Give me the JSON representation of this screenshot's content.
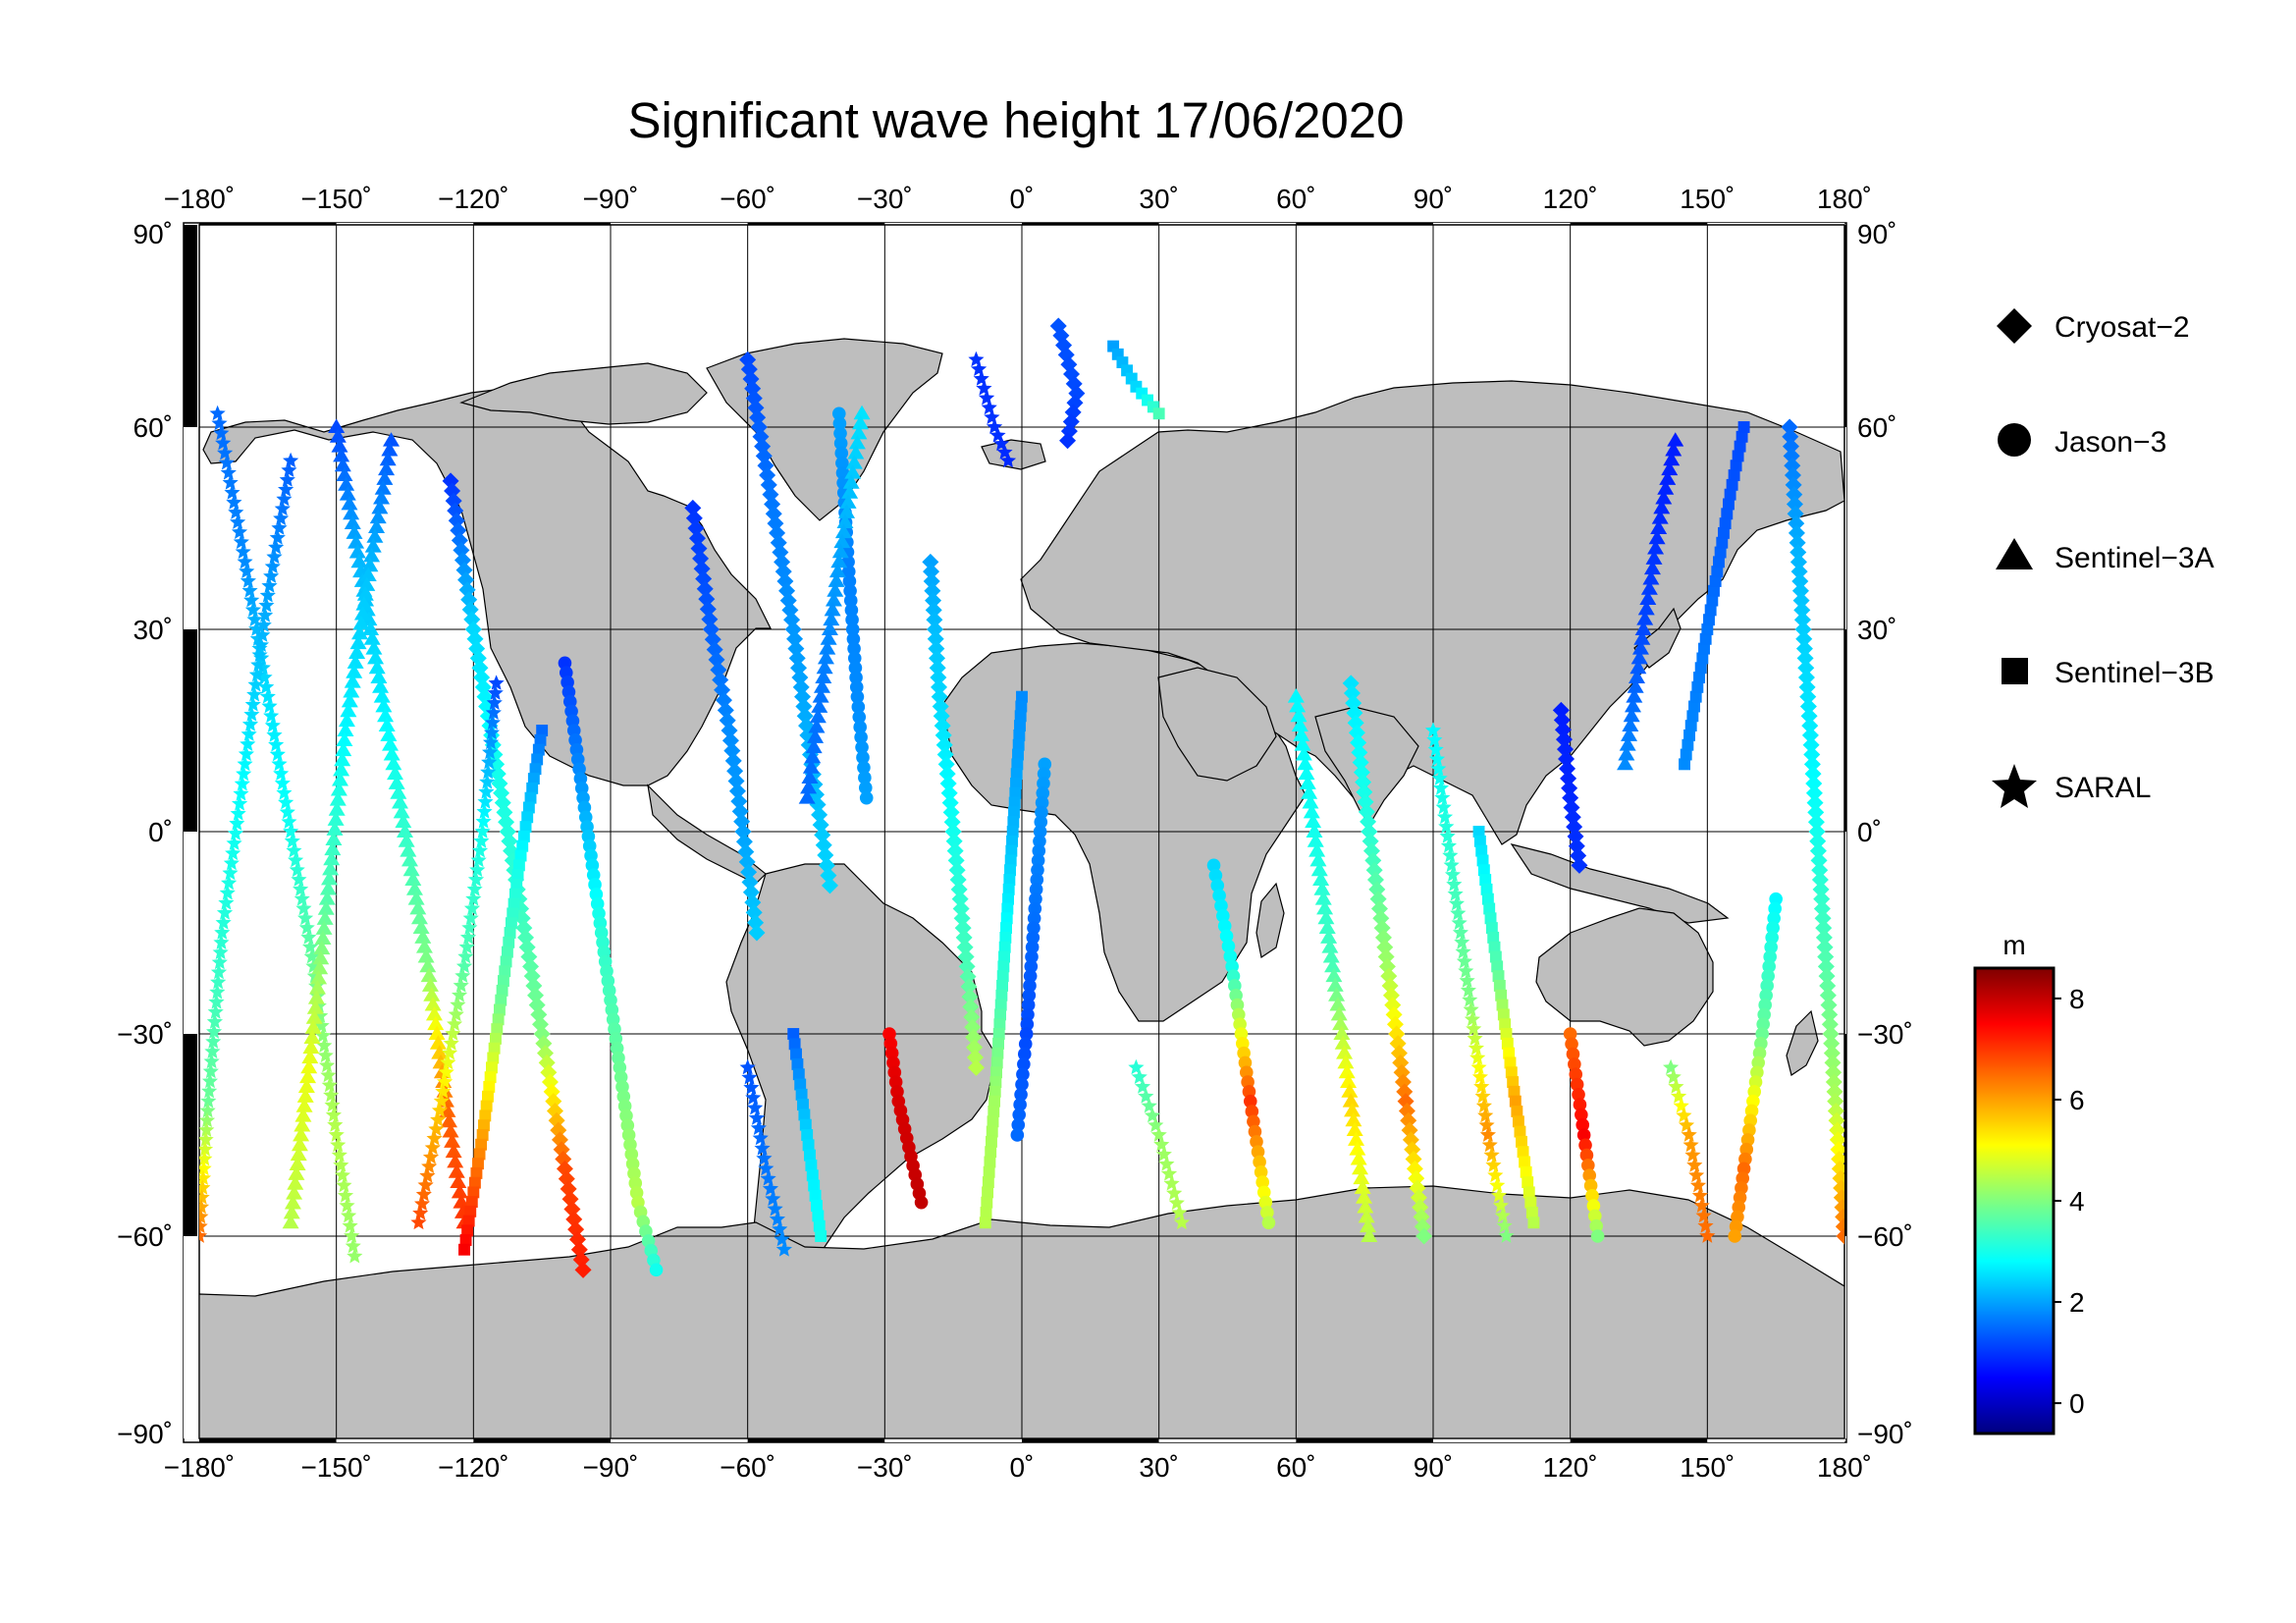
{
  "title": "Significant wave height 17/06/2020",
  "axes": {
    "lon_ticks": [
      {
        "value": -180,
        "label": "−180˚"
      },
      {
        "value": -150,
        "label": "−150˚"
      },
      {
        "value": -120,
        "label": "−120˚"
      },
      {
        "value": -90,
        "label": "−90˚"
      },
      {
        "value": -60,
        "label": "−60˚"
      },
      {
        "value": -30,
        "label": "−30˚"
      },
      {
        "value": 0,
        "label": "0˚"
      },
      {
        "value": 30,
        "label": "30˚"
      },
      {
        "value": 60,
        "label": "60˚"
      },
      {
        "value": 90,
        "label": "90˚"
      },
      {
        "value": 120,
        "label": "120˚"
      },
      {
        "value": 150,
        "label": "150˚"
      },
      {
        "value": 180,
        "label": "180˚"
      }
    ],
    "lat_ticks": [
      {
        "value": 90,
        "label": "90˚"
      },
      {
        "value": 60,
        "label": "60˚"
      },
      {
        "value": 30,
        "label": "30˚"
      },
      {
        "value": 0,
        "label": "0˚"
      },
      {
        "value": -30,
        "label": "−30˚"
      },
      {
        "value": -60,
        "label": "−60˚"
      },
      {
        "value": -90,
        "label": "−90˚"
      }
    ],
    "lon_range": [
      -180,
      180
    ],
    "lat_range": [
      -90,
      90
    ],
    "grid": true
  },
  "legend": {
    "placement": "right",
    "items": [
      {
        "label": "Cryosat−2",
        "marker": "diamond"
      },
      {
        "label": "Jason−3",
        "marker": "circle"
      },
      {
        "label": "Sentinel−3A",
        "marker": "triangle"
      },
      {
        "label": "Sentinel−3B",
        "marker": "square"
      },
      {
        "label": "SARAL",
        "marker": "star"
      }
    ]
  },
  "colorbar": {
    "unit": "m",
    "range": [
      -0.6,
      8.6
    ],
    "ticks": [
      {
        "value": 8,
        "label": "8"
      },
      {
        "value": 6,
        "label": "6"
      },
      {
        "value": 4,
        "label": "4"
      },
      {
        "value": 2,
        "label": "2"
      },
      {
        "value": 0,
        "label": "0"
      }
    ],
    "colormap": [
      "#00007f",
      "#0000ff",
      "#0080ff",
      "#00ffff",
      "#80ff80",
      "#ffff00",
      "#ff8000",
      "#ff0000",
      "#7f0000"
    ]
  },
  "colors": {
    "land": "#bebebe",
    "coast": "#000000",
    "ocean": "#ffffff"
  },
  "chart_data": {
    "type": "scatter",
    "tracks": [
      {
        "satellite": "SARAL",
        "pts": [
          [
            -176,
            62,
            1.5
          ],
          [
            -170,
            40,
            1.8
          ],
          [
            -165,
            20,
            2.6
          ],
          [
            -160,
            0,
            3.0
          ],
          [
            -155,
            -20,
            3.8
          ],
          [
            -150,
            -45,
            4.5
          ],
          [
            -146,
            -63,
            4.2
          ]
        ]
      },
      {
        "satellite": "SARAL",
        "pts": [
          [
            -160,
            55,
            1.4
          ],
          [
            -165,
            35,
            2.0
          ],
          [
            -170,
            10,
            2.8
          ],
          [
            -175,
            -15,
            3.2
          ],
          [
            -178,
            -40,
            3.8
          ],
          [
            -180,
            -60,
            6.5
          ]
        ]
      },
      {
        "satellite": "Sentinel-3A",
        "pts": [
          [
            -150,
            60,
            1.2
          ],
          [
            -145,
            40,
            2.2
          ],
          [
            -140,
            20,
            2.7
          ],
          [
            -135,
            0,
            3.3
          ],
          [
            -130,
            -20,
            4.0
          ],
          [
            -126,
            -40,
            6.5
          ],
          [
            -122,
            -58,
            7.0
          ]
        ]
      },
      {
        "satellite": "Sentinel-3A",
        "pts": [
          [
            -138,
            58,
            1.3
          ],
          [
            -143,
            38,
            2.3
          ],
          [
            -148,
            15,
            2.8
          ],
          [
            -152,
            -10,
            3.6
          ],
          [
            -156,
            -35,
            5.0
          ],
          [
            -160,
            -58,
            4.5
          ]
        ]
      },
      {
        "satellite": "Cryosat-2",
        "pts": [
          [
            -125,
            52,
            1.0
          ],
          [
            -120,
            30,
            2.5
          ],
          [
            -115,
            10,
            3.0
          ],
          [
            -110,
            -10,
            3.3
          ],
          [
            -105,
            -30,
            4.0
          ],
          [
            -100,
            -50,
            6.8
          ],
          [
            -96,
            -65,
            7.2
          ]
        ]
      },
      {
        "satellite": "SARAL",
        "pts": [
          [
            -115,
            22,
            1.2
          ],
          [
            -118,
            0,
            3.0
          ],
          [
            -122,
            -20,
            3.6
          ],
          [
            -127,
            -40,
            5.5
          ],
          [
            -132,
            -58,
            6.8
          ]
        ]
      },
      {
        "satellite": "Jason-3",
        "pts": [
          [
            -100,
            25,
            1.0
          ],
          [
            -96,
            5,
            2.0
          ],
          [
            -92,
            -15,
            3.2
          ],
          [
            -88,
            -35,
            3.8
          ],
          [
            -84,
            -55,
            4.5
          ],
          [
            -80,
            -65,
            3.0
          ]
        ]
      },
      {
        "satellite": "Sentinel-3B",
        "pts": [
          [
            -105,
            15,
            1.5
          ],
          [
            -110,
            -5,
            3.0
          ],
          [
            -114,
            -25,
            3.8
          ],
          [
            -118,
            -45,
            6.0
          ],
          [
            -122,
            -62,
            7.5
          ]
        ]
      },
      {
        "satellite": "Cryosat-2",
        "pts": [
          [
            -72,
            48,
            1.0
          ],
          [
            -68,
            30,
            1.4
          ],
          [
            -64,
            15,
            1.8
          ],
          [
            -61,
            0,
            2.0
          ],
          [
            -58,
            -15,
            2.4
          ]
        ]
      },
      {
        "satellite": "Cryosat-2",
        "pts": [
          [
            -60,
            70,
            1.2
          ],
          [
            -55,
            50,
            1.6
          ],
          [
            -50,
            30,
            1.9
          ],
          [
            -46,
            10,
            2.2
          ],
          [
            -42,
            -8,
            2.5
          ]
        ]
      },
      {
        "satellite": "Jason-3",
        "pts": [
          [
            -40,
            62,
            2.0
          ],
          [
            -38,
            40,
            1.7
          ],
          [
            -36,
            20,
            1.8
          ],
          [
            -34,
            5,
            2.0
          ]
        ]
      },
      {
        "satellite": "Sentinel-3A",
        "pts": [
          [
            -35,
            62,
            2.6
          ],
          [
            -40,
            40,
            2.0
          ],
          [
            -44,
            20,
            1.6
          ],
          [
            -47,
            5,
            1.5
          ]
        ]
      },
      {
        "satellite": "Sentinel-3B",
        "pts": [
          [
            -50,
            -30,
            1.4
          ],
          [
            -47,
            -45,
            2.5
          ],
          [
            -44,
            -60,
            3.0
          ]
        ]
      },
      {
        "satellite": "SARAL",
        "pts": [
          [
            -60,
            -35,
            1.3
          ],
          [
            -56,
            -50,
            1.6
          ],
          [
            -52,
            -62,
            1.8
          ]
        ]
      },
      {
        "satellite": "Jason-3",
        "pts": [
          [
            -29,
            -30,
            7.5
          ],
          [
            -27,
            -40,
            7.8
          ],
          [
            -22,
            -55,
            8.0
          ]
        ]
      },
      {
        "satellite": "Cryosat-2",
        "pts": [
          [
            -20,
            40,
            2.0
          ],
          [
            -18,
            20,
            2.5
          ],
          [
            -15,
            0,
            3.0
          ],
          [
            -12,
            -20,
            3.5
          ],
          [
            -10,
            -35,
            4.5
          ]
        ]
      },
      {
        "satellite": "Sentinel-3B",
        "pts": [
          [
            0,
            20,
            1.8
          ],
          [
            -2,
            0,
            2.2
          ],
          [
            -4,
            -20,
            3.2
          ],
          [
            -6,
            -40,
            4.3
          ],
          [
            -8,
            -58,
            4.5
          ]
        ]
      },
      {
        "satellite": "Jason-3",
        "pts": [
          [
            5,
            10,
            2.0
          ],
          [
            3,
            -10,
            1.6
          ],
          [
            1,
            -30,
            1.2
          ],
          [
            -1,
            -45,
            1.5
          ]
        ]
      },
      {
        "satellite": "SARAL",
        "pts": [
          [
            -10,
            70,
            1.0
          ],
          [
            -6,
            60,
            1.0
          ],
          [
            -3,
            55,
            0.9
          ]
        ]
      },
      {
        "satellite": "Cryosat-2",
        "pts": [
          [
            8,
            75,
            1.3
          ],
          [
            12,
            65,
            1.2
          ],
          [
            10,
            58,
            1.0
          ]
        ]
      },
      {
        "satellite": "Sentinel-3B",
        "pts": [
          [
            20,
            72,
            2.0
          ],
          [
            25,
            66,
            2.5
          ],
          [
            30,
            62,
            3.5
          ]
        ]
      },
      {
        "satellite": "SARAL",
        "pts": [
          [
            25,
            -35,
            3.2
          ],
          [
            30,
            -45,
            4.2
          ],
          [
            35,
            -58,
            4.5
          ]
        ]
      },
      {
        "satellite": "Jason-3",
        "pts": [
          [
            42,
            -5,
            2.5
          ],
          [
            46,
            -20,
            3.0
          ],
          [
            50,
            -40,
            7.0
          ],
          [
            54,
            -58,
            4.5
          ]
        ]
      },
      {
        "satellite": "Sentinel-3A",
        "pts": [
          [
            60,
            20,
            2.8
          ],
          [
            64,
            0,
            3.0
          ],
          [
            68,
            -20,
            3.5
          ],
          [
            72,
            -40,
            5.5
          ],
          [
            76,
            -60,
            4.5
          ]
        ]
      },
      {
        "satellite": "Cryosat-2",
        "pts": [
          [
            72,
            22,
            2.6
          ],
          [
            76,
            0,
            3.2
          ],
          [
            80,
            -20,
            4.3
          ],
          [
            84,
            -40,
            6.5
          ],
          [
            88,
            -60,
            4.0
          ]
        ]
      },
      {
        "satellite": "SARAL",
        "pts": [
          [
            90,
            15,
            2.8
          ],
          [
            94,
            -5,
            3.3
          ],
          [
            98,
            -25,
            4.0
          ],
          [
            102,
            -45,
            6.2
          ],
          [
            106,
            -60,
            4.0
          ]
        ]
      },
      {
        "satellite": "Sentinel-3B",
        "pts": [
          [
            100,
            0,
            2.5
          ],
          [
            104,
            -20,
            3.6
          ],
          [
            108,
            -40,
            6.0
          ],
          [
            112,
            -58,
            4.5
          ]
        ]
      },
      {
        "satellite": "Cryosat-2",
        "pts": [
          [
            118,
            18,
            0.8
          ],
          [
            120,
            5,
            0.9
          ],
          [
            122,
            -5,
            1.0
          ]
        ]
      },
      {
        "satellite": "Jason-3",
        "pts": [
          [
            120,
            -30,
            6.5
          ],
          [
            123,
            -45,
            7.5
          ],
          [
            126,
            -60,
            4.0
          ]
        ]
      },
      {
        "satellite": "Sentinel-3A",
        "pts": [
          [
            132,
            10,
            1.8
          ],
          [
            136,
            30,
            1.2
          ],
          [
            140,
            48,
            0.9
          ],
          [
            143,
            58,
            0.8
          ]
        ]
      },
      {
        "satellite": "Sentinel-3B",
        "pts": [
          [
            145,
            10,
            1.8
          ],
          [
            150,
            30,
            1.6
          ],
          [
            155,
            50,
            1.3
          ],
          [
            158,
            60,
            1.2
          ]
        ]
      },
      {
        "satellite": "SARAL",
        "pts": [
          [
            142,
            -35,
            4.0
          ],
          [
            146,
            -45,
            6.0
          ],
          [
            150,
            -60,
            6.5
          ]
        ]
      },
      {
        "satellite": "Cryosat-2",
        "pts": [
          [
            168,
            60,
            1.5
          ],
          [
            170,
            40,
            2.2
          ],
          [
            172,
            20,
            2.6
          ],
          [
            174,
            0,
            3.0
          ],
          [
            176,
            -20,
            3.6
          ],
          [
            178,
            -40,
            4.4
          ],
          [
            180,
            -60,
            6.5
          ]
        ]
      },
      {
        "satellite": "Jason-3",
        "pts": [
          [
            165,
            -10,
            2.8
          ],
          [
            162,
            -30,
            3.8
          ],
          [
            158,
            -50,
            6.5
          ],
          [
            156,
            -60,
            6.0
          ]
        ]
      }
    ]
  }
}
